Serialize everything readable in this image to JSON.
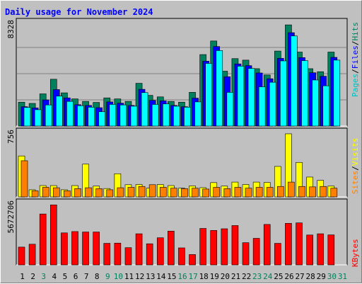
{
  "chart_data": {
    "type": "bar",
    "title": "Daily usage for November 2024",
    "categories": [
      "1",
      "2",
      "3",
      "4",
      "5",
      "6",
      "7",
      "8",
      "9",
      "10",
      "11",
      "12",
      "13",
      "14",
      "15",
      "16",
      "17",
      "18",
      "19",
      "20",
      "21",
      "22",
      "23",
      "24",
      "25",
      "26",
      "27",
      "28",
      "29",
      "30",
      "31"
    ],
    "weekend_days": [
      3,
      9,
      10,
      16,
      17,
      23,
      24,
      30,
      31
    ],
    "panels": [
      {
        "name": "hits-files-pages",
        "ymax_label": "8328",
        "ymax": 8328,
        "series": [
          {
            "name": "Hits",
            "color": "#00805c",
            "values": [
              1900,
              1800,
              2560,
              3720,
              2640,
              2160,
              1960,
              1880,
              2240,
              2160,
              1960,
              3400,
              2440,
              2320,
              1960,
              1900,
              2680,
              5680,
              6760,
              4360,
              5360,
              5240,
              4560,
              4060,
              5960,
              8040,
              5880,
              4560,
              4320,
              5880,
              0
            ]
          },
          {
            "name": "Files",
            "color": "#0000ff",
            "values": [
              1540,
              1440,
              2080,
              2900,
              2240,
              1700,
              1640,
              1460,
              1920,
              1820,
              1640,
              2920,
              2040,
              2000,
              1640,
              1540,
              2220,
              5160,
              6320,
              3920,
              4940,
              4800,
              4220,
              3760,
              5380,
              7420,
              5440,
              4240,
              3960,
              5460,
              0
            ]
          },
          {
            "name": "Pages",
            "color": "#00ffff",
            "values": [
              1480,
              1300,
              1680,
              2380,
              1960,
              1620,
              1500,
              1140,
              1720,
              1680,
              1580,
              2660,
              1720,
              1760,
              1580,
              1500,
              1920,
              4980,
              6000,
              2680,
              4760,
              4580,
              3120,
              3480,
              5180,
              7160,
              5200,
              3660,
              3200,
              5240,
              0
            ]
          }
        ]
      },
      {
        "name": "visits-sites",
        "ymax_label": "756",
        "ymax": 756,
        "series": [
          {
            "name": "Visits",
            "color": "#ffff00",
            "values": [
              470,
              82,
              130,
              130,
              82,
              130,
              376,
              124,
              96,
              266,
              140,
              142,
              100,
              142,
              130,
              100,
              126,
              106,
              164,
              124,
              170,
              142,
              170,
              166,
              350,
              724,
              396,
              228,
              190,
              124,
              0
            ]
          },
          {
            "name": "Sites",
            "color": "#ff8000",
            "values": [
              415,
              70,
              110,
              105,
              70,
              95,
              105,
              95,
              82,
              105,
              110,
              120,
              140,
              110,
              100,
              95,
              100,
              90,
              110,
              95,
              110,
              100,
              110,
              110,
              120,
              170,
              120,
              115,
              120,
              100,
              0
            ]
          }
        ]
      },
      {
        "name": "kbytes",
        "ymax_label": "5672706",
        "ymax": 5672706,
        "series": [
          {
            "name": "KBytes",
            "color": "#ff0000",
            "values": [
              1600000,
              1860000,
              4580000,
              5400000,
              2880000,
              3000000,
              2960000,
              2960000,
              1940000,
              1960000,
              1550000,
              2800000,
              1900000,
              2440000,
              3040000,
              1530000,
              930000,
              3280000,
              3100000,
              3250000,
              3540000,
              2000000,
              2390000,
              3640000,
              1940000,
              3740000,
              3780000,
              2690000,
              2800000,
              2700000,
              0
            ]
          }
        ]
      }
    ],
    "legend": {
      "top": [
        {
          "text": "Pages",
          "color": "#00c0c0"
        },
        {
          "text": "Files",
          "color": "#0000ff"
        },
        {
          "text": "Hits",
          "color": "#008060"
        }
      ],
      "middle": [
        {
          "text": "Sites",
          "color": "#ff8000"
        },
        {
          "text": "Visits",
          "color": "#ffff00"
        }
      ],
      "bottom": [
        {
          "text": "KBytes",
          "color": "#ff0000"
        }
      ],
      "separator": "/"
    },
    "colors": {
      "background": "#c0c0c0",
      "title": "#0000ff",
      "weekday_label": "#000000",
      "weekend_label": "#00805c",
      "gridline": "#808080"
    }
  }
}
